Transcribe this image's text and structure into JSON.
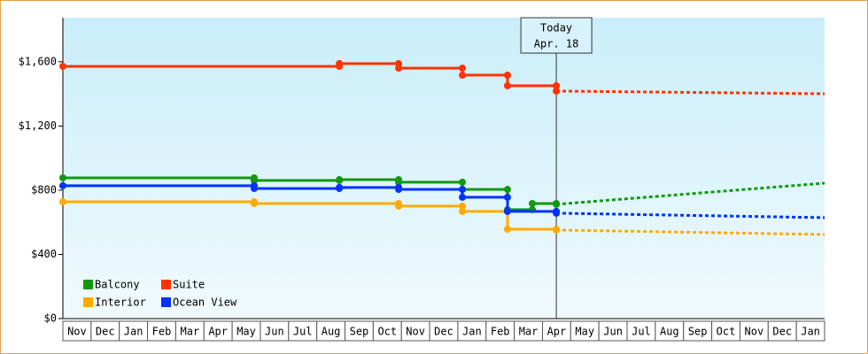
{
  "chart_data": {
    "type": "step-line",
    "categories": [
      "Nov",
      "Dec",
      "Jan",
      "Feb",
      "Mar",
      "Apr",
      "May",
      "Jun",
      "Jul",
      "Aug",
      "Sep",
      "Oct",
      "Nov",
      "Dec",
      "Jan",
      "Feb",
      "Mar",
      "Apr",
      "May",
      "Jun",
      "Jul",
      "Aug",
      "Sep",
      "Oct",
      "Nov",
      "Dec",
      "Jan"
    ],
    "xlim": [
      0,
      27
    ],
    "ylim": [
      0,
      1875
    ],
    "yticks": [
      {
        "value": 0,
        "label": "$0"
      },
      {
        "value": 400,
        "label": "$400"
      },
      {
        "value": 800,
        "label": "$800"
      },
      {
        "value": 1200,
        "label": "$1,200"
      },
      {
        "value": 1600,
        "label": "$1,600"
      }
    ],
    "annotation": {
      "text": [
        "Today",
        "Apr. 18"
      ],
      "x": 17.49
    },
    "series": [
      {
        "name": "Balcony",
        "color": "#119911",
        "x": [
          0,
          6.78,
          9.8,
          11.9,
          14.16,
          15.76,
          16.64,
          17.49
        ],
        "values": [
          877,
          861,
          866,
          850,
          805,
          679,
          717,
          712
        ],
        "forecast_x": [
          17.49,
          27
        ],
        "forecast_values": [
          712,
          844
        ]
      },
      {
        "name": "Suite",
        "color": "#ff3300",
        "x": [
          0,
          9.8,
          11.9,
          14.16,
          15.76,
          17.49
        ],
        "values": [
          1572,
          1589,
          1561,
          1517,
          1451,
          1418
        ],
        "forecast_x": [
          17.49,
          27
        ],
        "forecast_values": [
          1418,
          1401
        ]
      },
      {
        "name": "Interior",
        "color": "#ffaa00",
        "x": [
          0,
          6.78,
          11.9,
          14.16,
          15.76,
          17.49
        ],
        "values": [
          728,
          717,
          701,
          668,
          557,
          552
        ],
        "forecast_x": [
          17.49,
          27
        ],
        "forecast_values": [
          552,
          524
        ]
      },
      {
        "name": "Ocean View",
        "color": "#0033ff",
        "x": [
          0,
          6.78,
          9.8,
          11.9,
          14.16,
          15.76,
          17.49
        ],
        "values": [
          828,
          811,
          817,
          805,
          756,
          668,
          657
        ],
        "forecast_x": [
          17.49,
          27
        ],
        "forecast_values": [
          657,
          629
        ]
      }
    ]
  }
}
